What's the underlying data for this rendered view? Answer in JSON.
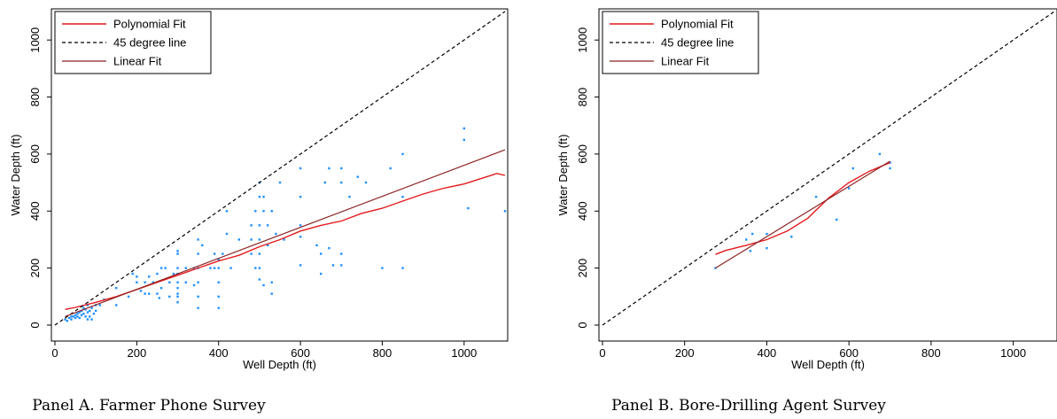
{
  "colors": {
    "poly": "#e41a1c",
    "linear": "#8b2323",
    "diag": "#000000",
    "points": "#1e90ff"
  },
  "captions": [
    "Panel A. Farmer Phone Survey",
    "Panel B. Bore-Drilling Agent Survey"
  ],
  "chart_data": [
    {
      "type": "scatter",
      "title": "Panel A. Farmer Phone Survey",
      "xlabel": "Well Depth (ft)",
      "ylabel": "Water Depth (ft)",
      "xlim": [
        0,
        1100
      ],
      "ylim": [
        0,
        1100
      ],
      "xticks": [
        0,
        200,
        400,
        600,
        800,
        1000
      ],
      "yticks": [
        0,
        200,
        400,
        600,
        800,
        1000
      ],
      "grid": false,
      "legend_position": "top-left",
      "legend": [
        "Polynomial Fit",
        "45 degree line",
        "Linear Fit"
      ],
      "points": [
        [
          25,
          20
        ],
        [
          30,
          15
        ],
        [
          35,
          25
        ],
        [
          40,
          30
        ],
        [
          40,
          20
        ],
        [
          45,
          30
        ],
        [
          50,
          35
        ],
        [
          50,
          25
        ],
        [
          55,
          40
        ],
        [
          55,
          30
        ],
        [
          60,
          45
        ],
        [
          60,
          25
        ],
        [
          65,
          50
        ],
        [
          65,
          35
        ],
        [
          70,
          40
        ],
        [
          70,
          60
        ],
        [
          75,
          55
        ],
        [
          75,
          30
        ],
        [
          80,
          45
        ],
        [
          80,
          20
        ],
        [
          80,
          70
        ],
        [
          85,
          50
        ],
        [
          85,
          30
        ],
        [
          90,
          60
        ],
        [
          90,
          20
        ],
        [
          95,
          40
        ],
        [
          100,
          70
        ],
        [
          100,
          50
        ],
        [
          110,
          70
        ],
        [
          120,
          90
        ],
        [
          150,
          70
        ],
        [
          150,
          130
        ],
        [
          180,
          100
        ],
        [
          190,
          180
        ],
        [
          200,
          150
        ],
        [
          200,
          170
        ],
        [
          210,
          120
        ],
        [
          220,
          110
        ],
        [
          220,
          150
        ],
        [
          230,
          110
        ],
        [
          230,
          170
        ],
        [
          240,
          150
        ],
        [
          250,
          110
        ],
        [
          250,
          180
        ],
        [
          255,
          95
        ],
        [
          260,
          200
        ],
        [
          260,
          130
        ],
        [
          270,
          200
        ],
        [
          280,
          150
        ],
        [
          280,
          100
        ],
        [
          290,
          180
        ],
        [
          300,
          260
        ],
        [
          300,
          250
        ],
        [
          300,
          200
        ],
        [
          300,
          180
        ],
        [
          300,
          150
        ],
        [
          300,
          130
        ],
        [
          300,
          110
        ],
        [
          300,
          100
        ],
        [
          300,
          80
        ],
        [
          320,
          150
        ],
        [
          320,
          200
        ],
        [
          340,
          200
        ],
        [
          340,
          140
        ],
        [
          350,
          300
        ],
        [
          350,
          250
        ],
        [
          350,
          200
        ],
        [
          350,
          150
        ],
        [
          350,
          100
        ],
        [
          350,
          60
        ],
        [
          360,
          280
        ],
        [
          380,
          200
        ],
        [
          390,
          250
        ],
        [
          390,
          200
        ],
        [
          400,
          230
        ],
        [
          400,
          200
        ],
        [
          400,
          150
        ],
        [
          400,
          100
        ],
        [
          400,
          60
        ],
        [
          410,
          250
        ],
        [
          420,
          320
        ],
        [
          420,
          400
        ],
        [
          430,
          200
        ],
        [
          450,
          300
        ],
        [
          480,
          350
        ],
        [
          480,
          300
        ],
        [
          480,
          250
        ],
        [
          490,
          400
        ],
        [
          490,
          200
        ],
        [
          500,
          500
        ],
        [
          500,
          450
        ],
        [
          500,
          350
        ],
        [
          500,
          300
        ],
        [
          500,
          250
        ],
        [
          500,
          200
        ],
        [
          500,
          160
        ],
        [
          510,
          450
        ],
        [
          510,
          400
        ],
        [
          510,
          140
        ],
        [
          520,
          350
        ],
        [
          520,
          280
        ],
        [
          530,
          400
        ],
        [
          530,
          150
        ],
        [
          530,
          110
        ],
        [
          540,
          320
        ],
        [
          550,
          500
        ],
        [
          560,
          300
        ],
        [
          600,
          550
        ],
        [
          600,
          450
        ],
        [
          600,
          350
        ],
        [
          600,
          310
        ],
        [
          600,
          210
        ],
        [
          640,
          280
        ],
        [
          650,
          250
        ],
        [
          650,
          180
        ],
        [
          660,
          500
        ],
        [
          670,
          550
        ],
        [
          670,
          270
        ],
        [
          680,
          210
        ],
        [
          700,
          550
        ],
        [
          700,
          500
        ],
        [
          700,
          250
        ],
        [
          700,
          210
        ],
        [
          720,
          450
        ],
        [
          740,
          520
        ],
        [
          760,
          500
        ],
        [
          800,
          200
        ],
        [
          820,
          550
        ],
        [
          850,
          600
        ],
        [
          850,
          450
        ],
        [
          850,
          200
        ],
        [
          1000,
          690
        ],
        [
          1000,
          650
        ],
        [
          1010,
          410
        ],
        [
          1100,
          400
        ]
      ],
      "series": [
        {
          "name": "Polynomial Fit",
          "x": [
            25,
            50,
            100,
            150,
            200,
            250,
            300,
            350,
            400,
            450,
            500,
            550,
            600,
            650,
            700,
            750,
            800,
            850,
            900,
            950,
            1000,
            1050,
            1080,
            1100
          ],
          "y": [
            55,
            62,
            80,
            100,
            125,
            150,
            175,
            200,
            225,
            245,
            275,
            300,
            330,
            350,
            365,
            392,
            410,
            435,
            460,
            480,
            495,
            518,
            532,
            525
          ]
        },
        {
          "name": "45 degree line",
          "x": [
            0,
            1100
          ],
          "y": [
            0,
            1100
          ]
        },
        {
          "name": "Linear Fit",
          "x": [
            25,
            1100
          ],
          "y": [
            30,
            615
          ]
        }
      ]
    },
    {
      "type": "scatter",
      "title": "Panel B. Bore-Drilling Agent Survey",
      "xlabel": "Well Depth (ft)",
      "ylabel": "Water Depth (ft)",
      "xlim": [
        0,
        1100
      ],
      "ylim": [
        0,
        1100
      ],
      "xticks": [
        0,
        200,
        400,
        600,
        800,
        1000
      ],
      "yticks": [
        0,
        200,
        400,
        600,
        800,
        1000
      ],
      "grid": false,
      "legend_position": "top-left",
      "legend": [
        "Polynomial Fit",
        "45 degree line",
        "Linear Fit"
      ],
      "points": [
        [
          275,
          200
        ],
        [
          350,
          300
        ],
        [
          360,
          260
        ],
        [
          365,
          320
        ],
        [
          400,
          270
        ],
        [
          400,
          320
        ],
        [
          460,
          310
        ],
        [
          520,
          450
        ],
        [
          570,
          370
        ],
        [
          600,
          480
        ],
        [
          610,
          550
        ],
        [
          675,
          600
        ],
        [
          700,
          570
        ],
        [
          700,
          550
        ]
      ],
      "series": [
        {
          "name": "Polynomial Fit",
          "x": [
            275,
            300,
            350,
            400,
            450,
            500,
            550,
            600,
            650,
            700
          ],
          "y": [
            248,
            262,
            280,
            300,
            330,
            375,
            445,
            500,
            540,
            570
          ]
        },
        {
          "name": "45 degree line",
          "x": [
            0,
            1100
          ],
          "y": [
            0,
            1100
          ]
        },
        {
          "name": "Linear Fit",
          "x": [
            275,
            700
          ],
          "y": [
            200,
            575
          ]
        }
      ]
    }
  ]
}
